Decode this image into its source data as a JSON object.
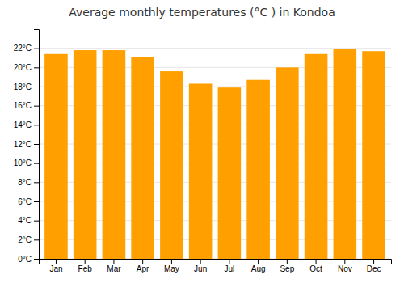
{
  "chart_data": {
    "type": "bar",
    "title": "Average monthly temperatures (°C ) in Kondoa",
    "categories": [
      "Jan",
      "Feb",
      "Mar",
      "Apr",
      "May",
      "Jun",
      "Jul",
      "Aug",
      "Sep",
      "Oct",
      "Nov",
      "Dec"
    ],
    "values": [
      21.4,
      21.8,
      21.8,
      21.1,
      19.6,
      18.3,
      17.9,
      18.7,
      20.0,
      21.4,
      21.9,
      21.7
    ],
    "color": "#FFA000",
    "ylim": [
      0,
      24
    ],
    "yticks": [
      {
        "value": 0,
        "label": "0°C"
      },
      {
        "value": 2,
        "label": "2°C"
      },
      {
        "value": 4,
        "label": "4°C"
      },
      {
        "value": 6,
        "label": "6°C"
      },
      {
        "value": 8,
        "label": "8°C"
      },
      {
        "value": 10,
        "label": "10°C"
      },
      {
        "value": 12,
        "label": "12°C"
      },
      {
        "value": 14,
        "label": "14°C"
      },
      {
        "value": 16,
        "label": "16°C"
      },
      {
        "value": 18,
        "label": "18°C"
      },
      {
        "value": 20,
        "label": "20°C"
      },
      {
        "value": 22,
        "label": "22°C"
      }
    ],
    "grid": true
  }
}
